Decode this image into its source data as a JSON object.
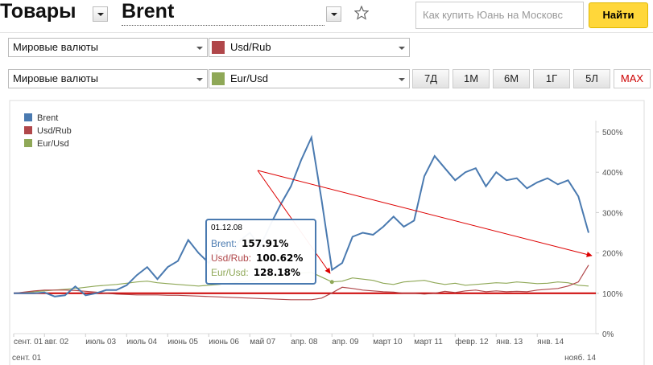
{
  "header": {
    "category": "Товары",
    "instrument": "Brent",
    "search_placeholder": "Как купить Юань на Московс",
    "search_button": "Найти"
  },
  "selectors": [
    {
      "group": "Мировые валюты",
      "instrument": "Usd/Rub",
      "color": "#b0474a"
    },
    {
      "group": "Мировые валюты",
      "instrument": "Eur/Usd",
      "color": "#8fa857"
    }
  ],
  "periods": [
    "7Д",
    "1М",
    "6М",
    "1Г",
    "5Л",
    "MAX"
  ],
  "active_period_index": 5,
  "chart_data": {
    "type": "line",
    "categories": [
      "сент. 01",
      null,
      null,
      "авг. 02",
      null,
      null,
      null,
      "июль 03",
      null,
      null,
      null,
      "июль 04",
      null,
      null,
      null,
      "июнь 05",
      null,
      null,
      null,
      "июнь 06",
      null,
      null,
      null,
      "май 07",
      null,
      null,
      null,
      "апр. 08",
      null,
      null,
      null,
      "апр. 09",
      null,
      null,
      null,
      "март 10",
      null,
      null,
      null,
      "март 11",
      null,
      null,
      null,
      "февр. 12",
      null,
      null,
      null,
      "янв. 13",
      null,
      null,
      null,
      "янв. 14",
      null,
      null,
      null,
      null,
      null
    ],
    "range_start": "сент. 01",
    "range_end": "нояб. 14",
    "series": [
      {
        "name": "Brent",
        "color": "#4a7ab0",
        "values": [
          100,
          100,
          100,
          102,
          92,
          95,
          117,
          95,
          100,
          108,
          108,
          120,
          145,
          165,
          135,
          165,
          180,
          232,
          200,
          175,
          210,
          185,
          230,
          250,
          215,
          270,
          320,
          365,
          430,
          486,
          330,
          158,
          175,
          240,
          250,
          245,
          265,
          290,
          265,
          280,
          390,
          440,
          410,
          380,
          400,
          410,
          365,
          400,
          380,
          385,
          360,
          375,
          385,
          370,
          380,
          340,
          250
        ]
      },
      {
        "name": "Usd/Rub",
        "color": "#b0474a",
        "values": [
          100,
          103,
          106,
          108,
          108,
          108,
          107,
          105,
          103,
          100,
          98,
          97,
          96,
          96,
          96,
          95,
          95,
          94,
          93,
          92,
          91,
          90,
          89,
          88,
          87,
          86,
          85,
          84,
          84,
          84,
          88,
          101,
          115,
          112,
          108,
          106,
          104,
          103,
          100,
          100,
          98,
          100,
          105,
          102,
          106,
          108,
          104,
          106,
          104,
          105,
          104,
          108,
          110,
          112,
          118,
          128,
          170
        ]
      },
      {
        "name": "Eur/Usd",
        "color": "#8fa857",
        "values": [
          100,
          102,
          104,
          106,
          108,
          110,
          112,
          115,
          118,
          120,
          122,
          125,
          128,
          130,
          126,
          124,
          122,
          120,
          118,
          120,
          122,
          125,
          128,
          130,
          135,
          140,
          145,
          148,
          150,
          152,
          140,
          128,
          130,
          138,
          135,
          132,
          125,
          122,
          128,
          130,
          132,
          126,
          122,
          125,
          120,
          122,
          124,
          126,
          125,
          128,
          126,
          124,
          125,
          128,
          126,
          120,
          118
        ]
      }
    ],
    "ylim": [
      0,
      500
    ],
    "yticks": [
      {
        "value": 0,
        "label": "0%"
      },
      {
        "value": 100,
        "label": "100%"
      },
      {
        "value": 200,
        "label": "200%"
      },
      {
        "value": 300,
        "label": "300%"
      },
      {
        "value": 400,
        "label": "400%"
      },
      {
        "value": 500,
        "label": "500%"
      }
    ],
    "baseline": 100,
    "baseline_color": "#cc0000",
    "legend": "top-left",
    "tooltip": {
      "index": 31,
      "date": "01.12.08",
      "rows": [
        {
          "label": "Brent:",
          "value": "157.91%"
        },
        {
          "label": "Usd/Rub:",
          "value": "100.62%"
        },
        {
          "label": "Eur/Usd:",
          "value": "128.18%"
        }
      ]
    }
  }
}
